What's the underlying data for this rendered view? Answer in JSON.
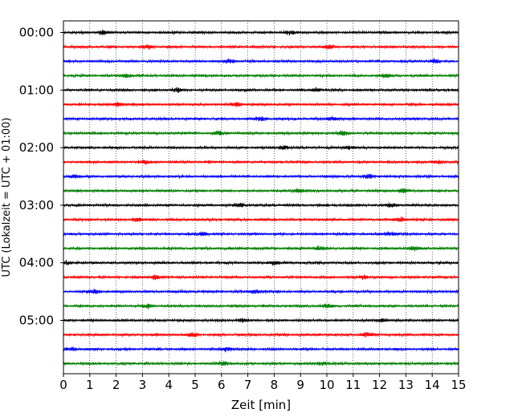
{
  "chart_data": {
    "type": "line",
    "title": "",
    "xlabel": "Zeit  [min]",
    "ylabel": "UTC (Lokalzeit = UTC + 01:00)",
    "xlim": [
      0,
      15
    ],
    "x_ticks": [
      "0",
      "1",
      "2",
      "3",
      "4",
      "5",
      "6",
      "7",
      "8",
      "9",
      "10",
      "11",
      "12",
      "13",
      "14",
      "15"
    ],
    "y_ticks": [
      "00:00",
      "01:00",
      "02:00",
      "03:00",
      "04:00",
      "05:00"
    ],
    "grid": "vertical-dotted",
    "line_colors": [
      "#000000",
      "#ff0000",
      "#0000ff",
      "#008000"
    ],
    "rows": [
      {
        "time": "00:00",
        "color": "#000000",
        "events": [
          1.5,
          8.6
        ]
      },
      {
        "time": "00:15",
        "color": "#ff0000",
        "events": [
          3.2,
          10.1
        ]
      },
      {
        "time": "00:30",
        "color": "#0000ff",
        "events": [
          6.3,
          14.1
        ]
      },
      {
        "time": "00:45",
        "color": "#008000",
        "events": [
          2.4,
          12.2
        ]
      },
      {
        "time": "01:00",
        "color": "#000000",
        "events": [
          4.3,
          9.6
        ]
      },
      {
        "time": "01:15",
        "color": "#ff0000",
        "events": [
          2.1,
          6.6
        ]
      },
      {
        "time": "01:30",
        "color": "#0000ff",
        "events": [
          7.5,
          10.2
        ]
      },
      {
        "time": "01:45",
        "color": "#008000",
        "events": [
          5.9,
          10.6
        ]
      },
      {
        "time": "02:00",
        "color": "#000000",
        "events": [
          8.4,
          10.8
        ]
      },
      {
        "time": "02:15",
        "color": "#ff0000",
        "events": [
          3.1,
          14.2
        ]
      },
      {
        "time": "02:30",
        "color": "#0000ff",
        "events": [
          0.4,
          11.6
        ]
      },
      {
        "time": "02:45",
        "color": "#008000",
        "events": [
          9.0,
          12.9
        ]
      },
      {
        "time": "03:00",
        "color": "#000000",
        "events": [
          6.7,
          12.5
        ]
      },
      {
        "time": "03:15",
        "color": "#ff0000",
        "events": [
          2.8,
          12.8
        ]
      },
      {
        "time": "03:30",
        "color": "#0000ff",
        "events": [
          5.3,
          12.4
        ]
      },
      {
        "time": "03:45",
        "color": "#008000",
        "events": [
          9.7,
          13.3
        ]
      },
      {
        "time": "04:00",
        "color": "#000000",
        "events": [
          0.1,
          8.0
        ]
      },
      {
        "time": "04:15",
        "color": "#ff0000",
        "events": [
          3.5,
          11.4
        ]
      },
      {
        "time": "04:30",
        "color": "#0000ff",
        "events": [
          1.2,
          7.3
        ]
      },
      {
        "time": "04:45",
        "color": "#008000",
        "events": [
          3.2,
          10.0
        ]
      },
      {
        "time": "05:00",
        "color": "#000000",
        "events": [
          6.8,
          12.1
        ]
      },
      {
        "time": "05:15",
        "color": "#ff0000",
        "events": [
          4.9,
          11.5
        ]
      },
      {
        "time": "05:30",
        "color": "#0000ff",
        "events": [
          6.2,
          0.3
        ]
      },
      {
        "time": "05:45",
        "color": "#008000",
        "events": [
          6.1,
          9.8
        ]
      }
    ]
  }
}
